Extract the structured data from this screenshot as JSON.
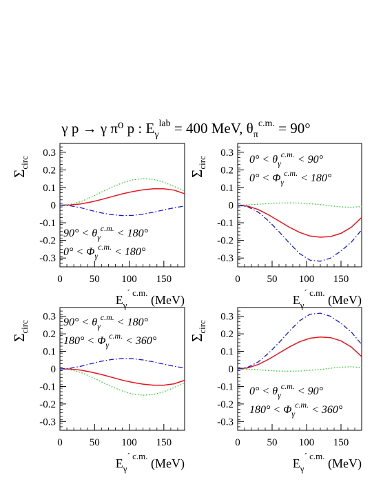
{
  "figure": {
    "title_parts": {
      "reaction": "γ p → γ π⁰ p  :  E",
      "e_sub": "γ",
      "e_sup": "lab",
      "energy": " = 400 MeV, θ",
      "theta_sub": "π",
      "theta_sup": "c.m.",
      "angle": " = 90°"
    }
  },
  "axes": {
    "ylabel": "Σ",
    "ylabel_sub": "circ",
    "xlabel": "E",
    "xlabel_sub": "γ",
    "xlabel_sup": "´ c.m.",
    "xlabel_unit": " (MeV)"
  },
  "colors": {
    "solid": "#e8141e",
    "dotted": "#22cc22",
    "dashdot": "#1414e0"
  },
  "chart_data": [
    {
      "type": "line",
      "panel": "top-left",
      "annotations": [
        "90° < θγ^c.m. < 180°",
        "0° < Φγ^c.m. < 180°"
      ],
      "xlim": [
        0,
        180
      ],
      "ylim": [
        -0.35,
        0.35
      ],
      "xticks": [
        0,
        50,
        100,
        150
      ],
      "yticks": [
        -0.3,
        -0.2,
        -0.1,
        0,
        0.1,
        0.2,
        0.3
      ],
      "x": [
        0,
        15,
        30,
        45,
        60,
        75,
        90,
        105,
        120,
        135,
        150,
        165,
        180
      ],
      "series": [
        {
          "style": "solid",
          "values": [
            0,
            0.001,
            0.007,
            0.018,
            0.032,
            0.048,
            0.064,
            0.077,
            0.087,
            0.093,
            0.093,
            0.085,
            0.065
          ]
        },
        {
          "style": "dotted",
          "values": [
            0,
            0.005,
            0.02,
            0.045,
            0.074,
            0.102,
            0.126,
            0.143,
            0.15,
            0.146,
            0.13,
            0.106,
            0.08
          ]
        },
        {
          "style": "dashdot",
          "values": [
            0,
            -0.004,
            -0.015,
            -0.03,
            -0.044,
            -0.054,
            -0.059,
            -0.058,
            -0.051,
            -0.04,
            -0.027,
            -0.015,
            -0.005
          ]
        }
      ]
    },
    {
      "type": "line",
      "panel": "top-right",
      "annotations": [
        "0° < θγ^c.m. < 90°",
        "0° < Φγ^c.m. < 180°"
      ],
      "xlim": [
        0,
        180
      ],
      "ylim": [
        -0.35,
        0.35
      ],
      "xticks": [
        0,
        50,
        100,
        150
      ],
      "yticks": [
        -0.3,
        -0.2,
        -0.1,
        0,
        0.1,
        0.2,
        0.3
      ],
      "x": [
        0,
        15,
        30,
        45,
        60,
        75,
        90,
        105,
        120,
        135,
        150,
        165,
        180
      ],
      "series": [
        {
          "style": "solid",
          "values": [
            0,
            -0.006,
            -0.025,
            -0.055,
            -0.09,
            -0.125,
            -0.155,
            -0.175,
            -0.182,
            -0.178,
            -0.16,
            -0.125,
            -0.07
          ]
        },
        {
          "style": "dotted",
          "values": [
            0,
            0.002,
            0.005,
            0.009,
            0.012,
            0.013,
            0.012,
            0.008,
            0.003,
            -0.004,
            -0.01,
            -0.012,
            -0.008
          ]
        },
        {
          "style": "dashdot",
          "values": [
            0,
            -0.01,
            -0.04,
            -0.09,
            -0.15,
            -0.215,
            -0.275,
            -0.312,
            -0.318,
            -0.3,
            -0.26,
            -0.21,
            -0.14
          ]
        }
      ]
    },
    {
      "type": "line",
      "panel": "bottom-left",
      "annotations": [
        "90° < θγ^c.m. < 180°",
        "180° < Φγ^c.m. < 360°"
      ],
      "xlim": [
        0,
        180
      ],
      "ylim": [
        -0.35,
        0.35
      ],
      "xticks": [
        0,
        50,
        100,
        150
      ],
      "yticks": [
        -0.3,
        -0.2,
        -0.1,
        0,
        0.1,
        0.2,
        0.3
      ],
      "x": [
        0,
        15,
        30,
        45,
        60,
        75,
        90,
        105,
        120,
        135,
        150,
        165,
        180
      ],
      "series": [
        {
          "style": "solid",
          "values": [
            0,
            -0.001,
            -0.007,
            -0.018,
            -0.032,
            -0.048,
            -0.064,
            -0.077,
            -0.087,
            -0.093,
            -0.093,
            -0.085,
            -0.065
          ]
        },
        {
          "style": "dotted",
          "values": [
            0,
            -0.005,
            -0.02,
            -0.045,
            -0.074,
            -0.102,
            -0.126,
            -0.143,
            -0.15,
            -0.146,
            -0.13,
            -0.106,
            -0.08
          ]
        },
        {
          "style": "dashdot",
          "values": [
            0,
            0.004,
            0.015,
            0.03,
            0.044,
            0.054,
            0.059,
            0.058,
            0.051,
            0.04,
            0.027,
            0.015,
            0.005
          ]
        }
      ]
    },
    {
      "type": "line",
      "panel": "bottom-right",
      "annotations": [
        "0° < θγ^c.m. < 90°",
        "180° < Φγ^c.m. < 360°"
      ],
      "xlim": [
        0,
        180
      ],
      "ylim": [
        -0.35,
        0.35
      ],
      "xticks": [
        0,
        50,
        100,
        150
      ],
      "yticks": [
        -0.3,
        -0.2,
        -0.1,
        0,
        0.1,
        0.2,
        0.3
      ],
      "x": [
        0,
        15,
        30,
        45,
        60,
        75,
        90,
        105,
        120,
        135,
        150,
        165,
        180
      ],
      "series": [
        {
          "style": "solid",
          "values": [
            0,
            0.006,
            0.025,
            0.055,
            0.09,
            0.125,
            0.155,
            0.175,
            0.182,
            0.178,
            0.16,
            0.125,
            0.07
          ]
        },
        {
          "style": "dotted",
          "values": [
            0,
            -0.002,
            -0.005,
            -0.009,
            -0.012,
            -0.013,
            -0.012,
            -0.008,
            -0.003,
            0.004,
            0.01,
            0.012,
            0.008
          ]
        },
        {
          "style": "dashdot",
          "values": [
            0,
            0.01,
            0.04,
            0.09,
            0.15,
            0.215,
            0.275,
            0.312,
            0.318,
            0.3,
            0.26,
            0.21,
            0.14
          ]
        }
      ]
    }
  ]
}
